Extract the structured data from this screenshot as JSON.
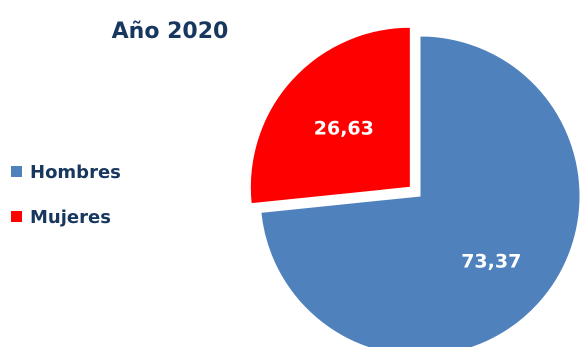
{
  "chart_data": {
    "type": "pie",
    "title": "Año 2020",
    "legend_position": "left",
    "slices": [
      {
        "label": "Hombres",
        "value": 73.37,
        "display": "73,37",
        "color": "#4f81bd",
        "exploded": false
      },
      {
        "label": "Mujeres",
        "value": 26.63,
        "display": "26,63",
        "color": "#ff0000",
        "exploded": true
      }
    ]
  }
}
